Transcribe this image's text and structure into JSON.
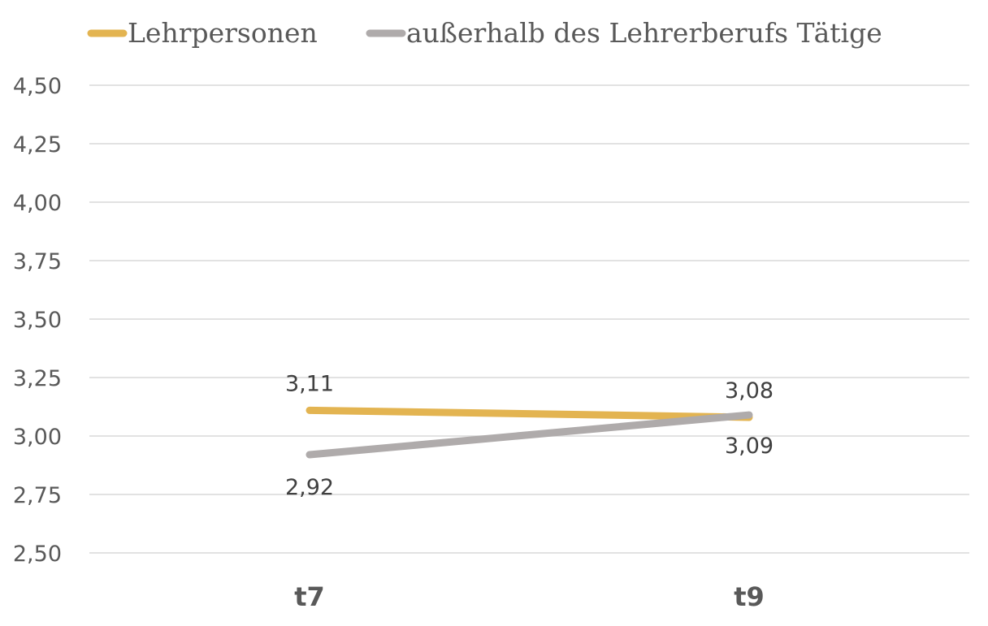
{
  "chart_data": {
    "type": "line",
    "categories": [
      "t7",
      "t9"
    ],
    "series": [
      {
        "name": "Lehrpersonen",
        "values": [
          3.11,
          3.08
        ],
        "labels": [
          "3,11",
          "3,08"
        ],
        "color": "#e3b451"
      },
      {
        "name": "außerhalb des Lehrerberufs Tätige",
        "values": [
          2.92,
          3.09
        ],
        "labels": [
          "2,92",
          "3,09"
        ],
        "color": "#afabab"
      }
    ],
    "ylim": [
      2.5,
      4.5
    ],
    "yticks": [
      2.5,
      2.75,
      3.0,
      3.25,
      3.5,
      3.75,
      4.0,
      4.25,
      4.5
    ],
    "ytick_labels": [
      "2,50",
      "2,75",
      "3,00",
      "3,25",
      "3,50",
      "3,75",
      "4,00",
      "4,25",
      "4,50"
    ],
    "grid": true,
    "legend": "top-left"
  }
}
